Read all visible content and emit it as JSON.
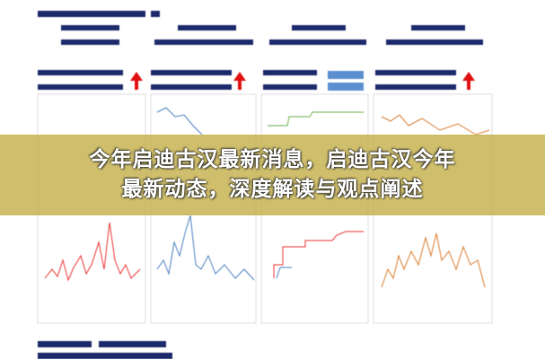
{
  "banner": {
    "lines": [
      "今年启迪古汉最新消息，启迪古汉今年",
      "最新动态，深度解读与观点阐述"
    ]
  }
}
